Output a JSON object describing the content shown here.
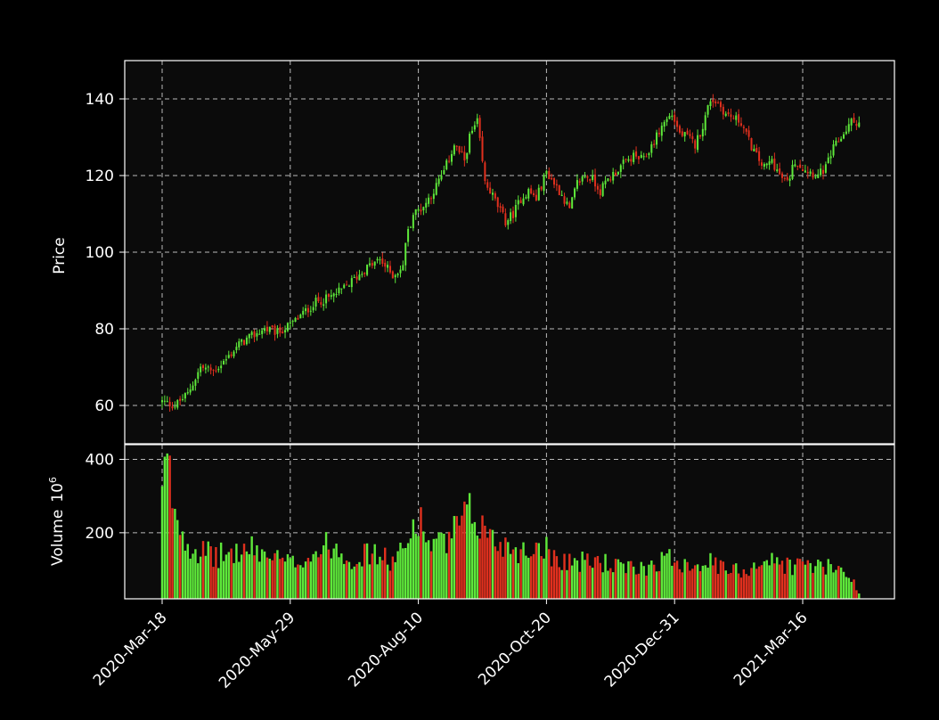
{
  "chart_data": {
    "type": "candlestick",
    "background": "#000000",
    "plot_background": "#0b0b0b",
    "up_color": "#5ee83a",
    "down_color": "#e0301e",
    "grid_color": "#d9d9d9",
    "grid": true,
    "x_ticks": [
      {
        "label": "2020-Mar-18",
        "index": 0
      },
      {
        "label": "2020-May-29",
        "index": 50
      },
      {
        "label": "2020-Aug-10",
        "index": 100
      },
      {
        "label": "2020-Oct-20",
        "index": 150
      },
      {
        "label": "2020-Dec-31",
        "index": 200
      },
      {
        "label": "2021-Mar-16",
        "index": 250
      }
    ],
    "n_sessions": 273,
    "price_panel": {
      "ylabel": "Price",
      "ylim": [
        50,
        150
      ],
      "yticks": [
        60,
        80,
        100,
        120,
        140
      ],
      "close_anchors": [
        [
          0,
          61
        ],
        [
          5,
          60
        ],
        [
          10,
          63
        ],
        [
          15,
          70
        ],
        [
          20,
          69
        ],
        [
          25,
          72
        ],
        [
          30,
          76
        ],
        [
          35,
          78
        ],
        [
          40,
          80
        ],
        [
          45,
          79
        ],
        [
          50,
          81
        ],
        [
          55,
          84
        ],
        [
          60,
          87
        ],
        [
          65,
          88
        ],
        [
          70,
          90
        ],
        [
          75,
          93
        ],
        [
          80,
          96
        ],
        [
          85,
          98
        ],
        [
          90,
          94
        ],
        [
          94,
          96
        ],
        [
          95,
          103
        ],
        [
          98,
          110
        ],
        [
          102,
          112
        ],
        [
          106,
          116
        ],
        [
          110,
          121
        ],
        [
          114,
          128
        ],
        [
          118,
          124
        ],
        [
          120,
          130
        ],
        [
          123,
          134
        ],
        [
          126,
          118
        ],
        [
          128,
          116
        ],
        [
          131,
          112
        ],
        [
          134,
          108
        ],
        [
          137,
          110
        ],
        [
          140,
          114
        ],
        [
          143,
          116
        ],
        [
          146,
          114
        ],
        [
          150,
          121
        ],
        [
          153,
          118
        ],
        [
          156,
          115
        ],
        [
          159,
          111
        ],
        [
          162,
          118
        ],
        [
          165,
          120
        ],
        [
          168,
          119
        ],
        [
          171,
          116
        ],
        [
          174,
          119
        ],
        [
          177,
          121
        ],
        [
          180,
          123
        ],
        [
          184,
          125
        ],
        [
          188,
          124
        ],
        [
          192,
          129
        ],
        [
          196,
          134
        ],
        [
          199,
          136
        ],
        [
          202,
          131
        ],
        [
          205,
          130
        ],
        [
          208,
          128
        ],
        [
          211,
          133
        ],
        [
          214,
          140
        ],
        [
          217,
          139
        ],
        [
          220,
          136
        ],
        [
          223,
          135
        ],
        [
          226,
          134
        ],
        [
          229,
          129
        ],
        [
          232,
          125
        ],
        [
          235,
          122
        ],
        [
          238,
          124
        ],
        [
          241,
          120
        ],
        [
          244,
          118
        ],
        [
          247,
          124
        ],
        [
          250,
          122
        ],
        [
          253,
          121
        ],
        [
          256,
          120
        ],
        [
          259,
          122
        ],
        [
          262,
          127
        ],
        [
          266,
          131
        ],
        [
          269,
          134
        ],
        [
          272,
          134
        ]
      ]
    },
    "volume_panel": {
      "ylabel": "Volume",
      "ylabel_exp": "6",
      "unit": "10^6",
      "ylim": [
        20,
        440
      ],
      "yticks": [
        200,
        400
      ],
      "volume_anchors": [
        [
          0,
          300
        ],
        [
          2,
          400
        ],
        [
          4,
          300
        ],
        [
          6,
          250
        ],
        [
          8,
          200
        ],
        [
          12,
          160
        ],
        [
          20,
          135
        ],
        [
          28,
          145
        ],
        [
          36,
          155
        ],
        [
          44,
          130
        ],
        [
          50,
          115
        ],
        [
          58,
          140
        ],
        [
          66,
          170
        ],
        [
          74,
          130
        ],
        [
          82,
          145
        ],
        [
          90,
          120
        ],
        [
          96,
          165
        ],
        [
          99,
          260
        ],
        [
          104,
          175
        ],
        [
          110,
          165
        ],
        [
          116,
          220
        ],
        [
          120,
          250
        ],
        [
          124,
          225
        ],
        [
          130,
          175
        ],
        [
          136,
          165
        ],
        [
          142,
          145
        ],
        [
          148,
          175
        ],
        [
          152,
          140
        ],
        [
          158,
          125
        ],
        [
          164,
          120
        ],
        [
          170,
          125
        ],
        [
          176,
          110
        ],
        [
          182,
          100
        ],
        [
          188,
          105
        ],
        [
          194,
          125
        ],
        [
          200,
          130
        ],
        [
          206,
          115
        ],
        [
          212,
          125
        ],
        [
          218,
          105
        ],
        [
          222,
          95
        ],
        [
          228,
          100
        ],
        [
          234,
          125
        ],
        [
          240,
          120
        ],
        [
          246,
          110
        ],
        [
          252,
          115
        ],
        [
          258,
          105
        ],
        [
          264,
          100
        ],
        [
          268,
          95
        ],
        [
          272,
          30
        ]
      ]
    }
  }
}
